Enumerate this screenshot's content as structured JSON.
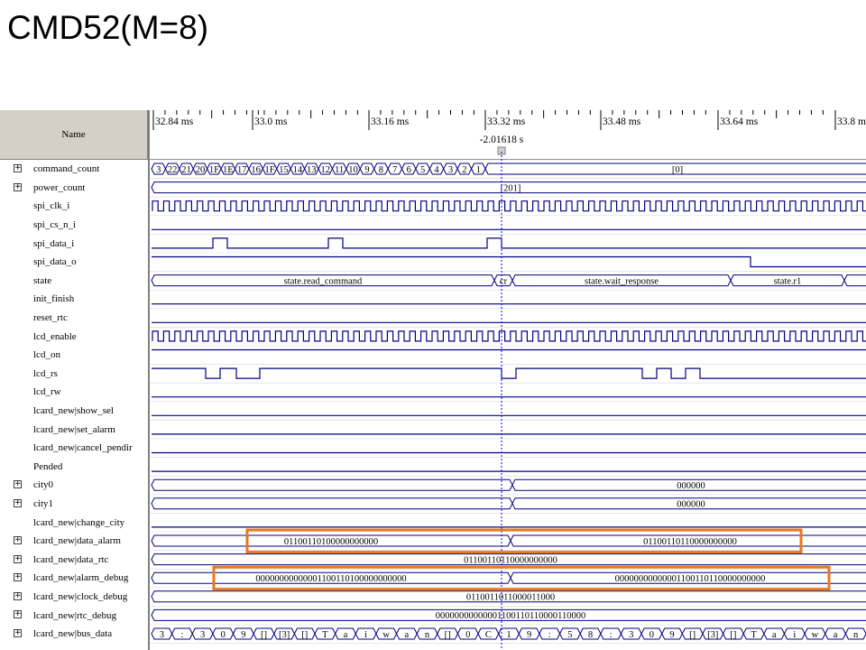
{
  "slide": {
    "title": "CMD52(M=8)"
  },
  "viewer": {
    "name_header": "Name",
    "timeline": {
      "ticks": [
        "32.84 ms",
        "33.0 ms",
        "33.16 ms",
        "33.32 ms",
        "33.48 ms",
        "33.64 ms",
        "33.8 ms"
      ],
      "cursor_label": "-2.01618 s"
    },
    "signals": [
      {
        "name": "command_count",
        "bus": true
      },
      {
        "name": "power_count",
        "bus": true
      },
      {
        "name": "spi_clk_i",
        "bus": false
      },
      {
        "name": "spi_cs_n_i",
        "bus": false
      },
      {
        "name": "spi_data_i",
        "bus": false
      },
      {
        "name": "spi_data_o",
        "bus": false
      },
      {
        "name": "state",
        "bus": false
      },
      {
        "name": "init_finish",
        "bus": false
      },
      {
        "name": "reset_rtc",
        "bus": false
      },
      {
        "name": "lcd_enable",
        "bus": false
      },
      {
        "name": "lcd_on",
        "bus": false
      },
      {
        "name": "lcd_rs",
        "bus": false
      },
      {
        "name": "lcd_rw",
        "bus": false
      },
      {
        "name": "lcard_new|show_sel",
        "bus": false
      },
      {
        "name": "lcard_new|set_alarm",
        "bus": false
      },
      {
        "name": "lcard_new|cancel_pendir",
        "bus": false
      },
      {
        "name": "Pended",
        "bus": false
      },
      {
        "name": "city0",
        "bus": true
      },
      {
        "name": "city1",
        "bus": true
      },
      {
        "name": "lcard_new|change_city",
        "bus": false
      },
      {
        "name": "lcard_new|data_alarm",
        "bus": true
      },
      {
        "name": "lcard_new|data_rtc",
        "bus": true
      },
      {
        "name": "lcard_new|alarm_debug",
        "bus": true
      },
      {
        "name": "lcard_new|clock_debug",
        "bus": true
      },
      {
        "name": "lcard_new|rtc_debug",
        "bus": true
      },
      {
        "name": "lcard_new|bus_data",
        "bus": true
      }
    ],
    "values": {
      "command_count_right": "[0]",
      "command_count_left": [
        "3",
        "22",
        "21",
        "20",
        "1F",
        "1E",
        "17",
        "16",
        "1F",
        "15",
        "14",
        "13",
        "12",
        "11",
        "10",
        "9",
        "8",
        "7",
        "6",
        "5",
        "4",
        "3",
        "2",
        "1"
      ],
      "power_count": "[201]",
      "state_read": "state.read_command",
      "state_cr": "cr",
      "state_wait": "state.wait_response",
      "state_r1": "state.r1",
      "city0": "000000",
      "city1": "000000",
      "data_alarm_before": "01100110100000000000",
      "data_alarm_after": "01100110110000000000",
      "data_rtc": "01100110110000000000",
      "alarm_debug_before": "00000000000001100110100000000000",
      "alarm_debug_after": "00000000000001100110110000000000",
      "clock_debug": "0110011011000011000",
      "rtc_debug": "00000000000001100110110000110000",
      "bus_data": [
        "3",
        ":",
        "3",
        "0",
        "9",
        "[]",
        "[3]",
        "[]",
        "T",
        "a",
        "i",
        "w",
        "a",
        "n",
        "[]",
        "0",
        "C",
        "1",
        "9",
        ":",
        "5",
        "8",
        ":",
        "3",
        "0",
        "9",
        "[]",
        "[3]",
        "[]",
        "T",
        "a",
        "i",
        "w",
        "a",
        "n"
      ]
    },
    "highlight_color": "#e87722",
    "wave_color": "#000080"
  }
}
